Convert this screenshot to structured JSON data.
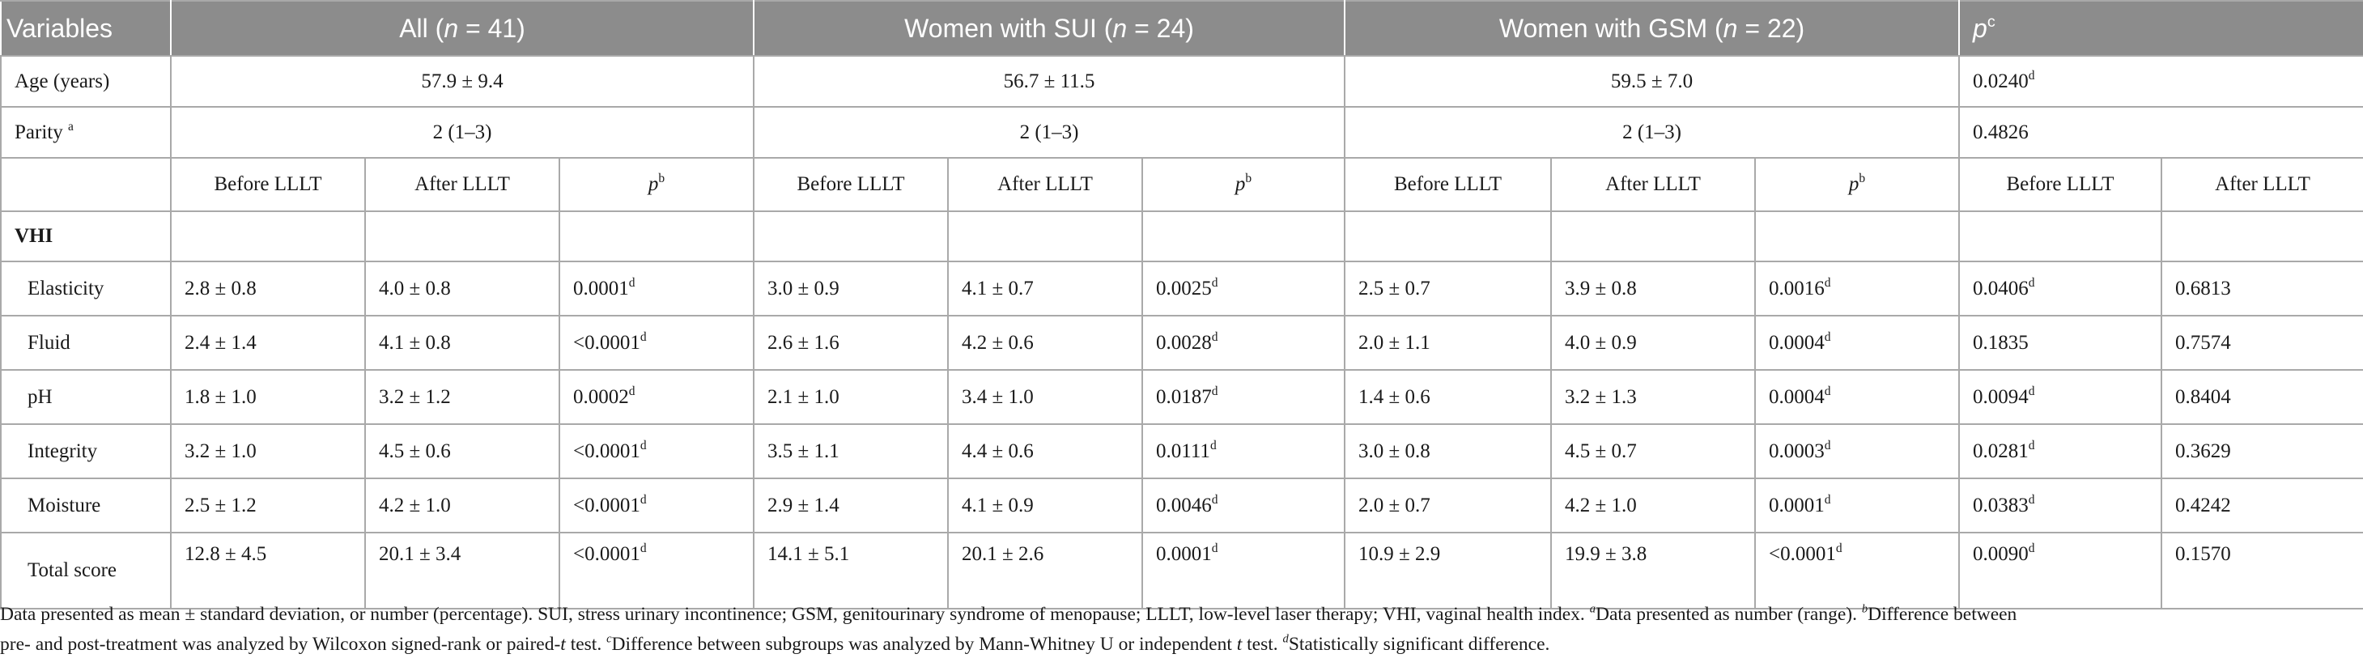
{
  "header": {
    "variables": "Variables",
    "all": {
      "label": "All (",
      "n": "n",
      "val": " = 41)"
    },
    "sui": {
      "label": "Women with SUI (",
      "n": "n",
      "val": " = 24)"
    },
    "gsm": {
      "label": "Women with GSM (",
      "n": "n",
      "val": " = 22)"
    },
    "p": "p",
    "p_sup": "c"
  },
  "age": {
    "label": "Age (years)",
    "all": "57.9 ± 9.4",
    "sui": "56.7 ± 11.5",
    "gsm": "59.5 ± 7.0",
    "p": "0.0240",
    "p_sup": "d"
  },
  "parity": {
    "label": "Parity ",
    "label_sup": "a",
    "all": "2 (1–3)",
    "sui": "2 (1–3)",
    "gsm": "2 (1–3)",
    "p": "0.4826"
  },
  "subheader": {
    "before": "Before LLLT",
    "after": "After LLLT",
    "p": "p",
    "p_sup": "b"
  },
  "vhi_label": "VHI",
  "rows": [
    {
      "label": "Elasticity",
      "all_b": "2.8 ± 0.8",
      "all_a": "4.0 ± 0.8",
      "all_p": "0.0001",
      "all_p_sup": "d",
      "sui_b": "3.0 ± 0.9",
      "sui_a": "4.1 ± 0.7",
      "sui_p": "0.0025",
      "sui_p_sup": "d",
      "gsm_b": "2.5 ± 0.7",
      "gsm_a": "3.9 ± 0.8",
      "gsm_p": "0.0016",
      "gsm_p_sup": "d",
      "pc_b": "0.0406",
      "pc_b_sup": "d",
      "pc_a": "0.6813",
      "pc_a_sup": ""
    },
    {
      "label": "Fluid",
      "all_b": "2.4 ± 1.4",
      "all_a": "4.1 ± 0.8",
      "all_p": "<0.0001",
      "all_p_sup": "d",
      "sui_b": "2.6 ± 1.6",
      "sui_a": "4.2 ± 0.6",
      "sui_p": "0.0028",
      "sui_p_sup": "d",
      "gsm_b": "2.0 ± 1.1",
      "gsm_a": "4.0 ± 0.9",
      "gsm_p": "0.0004",
      "gsm_p_sup": "d",
      "pc_b": "0.1835",
      "pc_b_sup": "",
      "pc_a": "0.7574",
      "pc_a_sup": ""
    },
    {
      "label": "pH",
      "all_b": "1.8 ± 1.0",
      "all_a": "3.2 ± 1.2",
      "all_p": "0.0002",
      "all_p_sup": "d",
      "sui_b": "2.1 ± 1.0",
      "sui_a": "3.4 ± 1.0",
      "sui_p": "0.0187",
      "sui_p_sup": "d",
      "gsm_b": "1.4 ± 0.6",
      "gsm_a": "3.2 ± 1.3",
      "gsm_p": "0.0004",
      "gsm_p_sup": "d",
      "pc_b": "0.0094",
      "pc_b_sup": "d",
      "pc_a": "0.8404",
      "pc_a_sup": ""
    },
    {
      "label": "Integrity",
      "all_b": "3.2 ± 1.0",
      "all_a": "4.5 ± 0.6",
      "all_p": "<0.0001",
      "all_p_sup": "d",
      "sui_b": "3.5 ± 1.1",
      "sui_a": "4.4 ± 0.6",
      "sui_p": "0.0111",
      "sui_p_sup": "d",
      "gsm_b": "3.0 ± 0.8",
      "gsm_a": "4.5 ± 0.7",
      "gsm_p": "0.0003",
      "gsm_p_sup": "d",
      "pc_b": "0.0281",
      "pc_b_sup": "d",
      "pc_a": "0.3629",
      "pc_a_sup": ""
    },
    {
      "label": "Moisture",
      "all_b": "2.5 ± 1.2",
      "all_a": "4.2 ± 1.0",
      "all_p": "<0.0001",
      "all_p_sup": "d",
      "sui_b": "2.9 ± 1.4",
      "sui_a": "4.1 ± 0.9",
      "sui_p": "0.0046",
      "sui_p_sup": "d",
      "gsm_b": "2.0 ± 0.7",
      "gsm_a": "4.2 ± 1.0",
      "gsm_p": "0.0001",
      "gsm_p_sup": "d",
      "pc_b": "0.0383",
      "pc_b_sup": "d",
      "pc_a": "0.4242",
      "pc_a_sup": ""
    },
    {
      "label": "Total score",
      "all_b": "12.8 ± 4.5",
      "all_a": "20.1 ± 3.4",
      "all_p": "<0.0001",
      "all_p_sup": "d",
      "sui_b": "14.1 ± 5.1",
      "sui_a": "20.1 ± 2.6",
      "sui_p": "0.0001",
      "sui_p_sup": "d",
      "gsm_b": "10.9 ± 2.9",
      "gsm_a": "19.9 ± 3.8",
      "gsm_p": "<0.0001",
      "gsm_p_sup": "d",
      "pc_b": "0.0090",
      "pc_b_sup": "d",
      "pc_a": "0.1570",
      "pc_a_sup": ""
    }
  ],
  "footnote": {
    "line1": "Data presented as mean ± standard deviation, or number (percentage). SUI, stress urinary incontinence; GSM, genitourinary syndrome of menopause; LLLT, low-level laser therapy; VHI, vaginal health index. ",
    "a_mark": "a",
    "a_text": "Data presented as number (range). ",
    "b_mark": "b",
    "b_text1": "Difference between",
    "line2": "pre- and post-treatment was analyzed by Wilcoxon signed-rank or paired-",
    "t1": "t",
    "line2b": " test. ",
    "c_mark": "c",
    "c_text": "Difference between subgroups was analyzed by Mann-Whitney U or independent ",
    "t2": "t",
    "line2c": " test. ",
    "d_mark": "d",
    "d_text": "Statistically significant difference."
  }
}
